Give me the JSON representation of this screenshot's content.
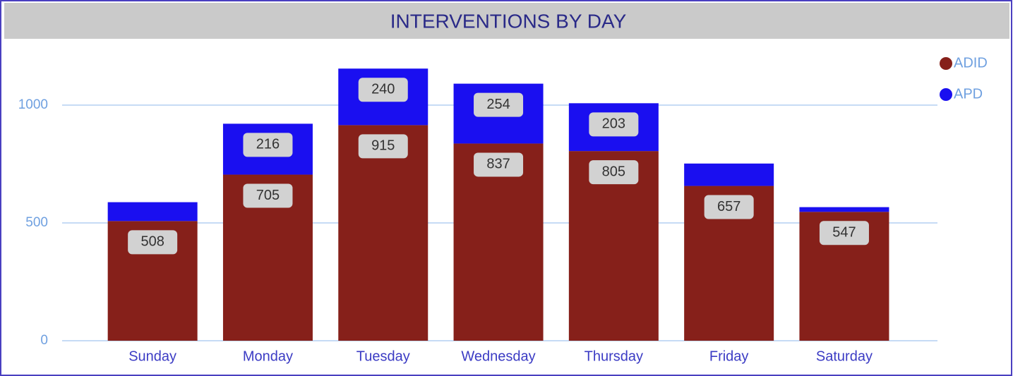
{
  "chart_data": {
    "type": "stacked_bar",
    "title": "INTERVENTIONS BY DAY",
    "categories": [
      "Sunday",
      "Monday",
      "Tuesday",
      "Wednesday",
      "Thursday",
      "Friday",
      "Saturday"
    ],
    "series": [
      {
        "name": "ADID",
        "color": "#86201a",
        "values": [
          508,
          705,
          915,
          837,
          805,
          657,
          547
        ],
        "value_labels": [
          "508",
          "705",
          "915",
          "837",
          "805",
          "657",
          "547"
        ]
      },
      {
        "name": "APD",
        "color": "#1a0ff0",
        "values": [
          80,
          216,
          240,
          254,
          203,
          95,
          20
        ],
        "value_labels": [
          null,
          "216",
          "240",
          "254",
          "203",
          null,
          null
        ]
      }
    ],
    "ylim": [
      0,
      1250
    ],
    "yticks": [
      0,
      500,
      1000
    ],
    "grid": true,
    "legend": "top-right"
  }
}
